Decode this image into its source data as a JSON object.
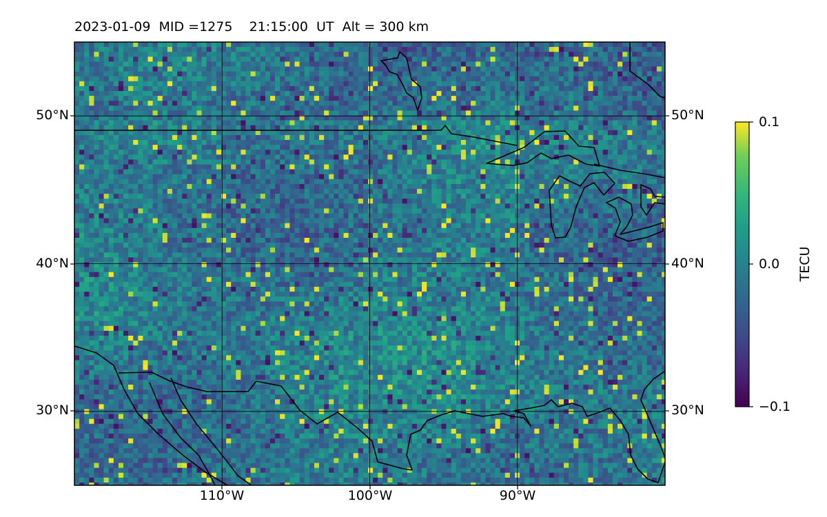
{
  "title": "2023-01-09  MID =1275    21:15:00  UT  Alt = 300 km",
  "map": {
    "extent_lon": [
      -120,
      -80
    ],
    "extent_lat": [
      25,
      55
    ],
    "lat_ticks": [
      {
        "value": 50,
        "label": "50°N"
      },
      {
        "value": 40,
        "label": "40°N"
      },
      {
        "value": 30,
        "label": "30°N"
      }
    ],
    "lon_ticks": [
      {
        "value": -110,
        "label": "110°W"
      },
      {
        "value": -100,
        "label": "100°W"
      },
      {
        "value": -90,
        "label": "90°W"
      }
    ],
    "gridlines": true,
    "coastlines": true
  },
  "colorbar": {
    "label": "TECU",
    "colormap": "viridis",
    "range": [
      -0.1,
      0.1
    ],
    "ticks": [
      {
        "value": 0.1,
        "label": "0.1"
      },
      {
        "value": 0.0,
        "label": "0.0"
      },
      {
        "value": -0.1,
        "label": "−0.1"
      }
    ]
  },
  "colors": {
    "viridis_low": "#440154",
    "viridis_mid": "#21908d",
    "viridis_high": "#fde725",
    "coastline": "#000000"
  }
}
